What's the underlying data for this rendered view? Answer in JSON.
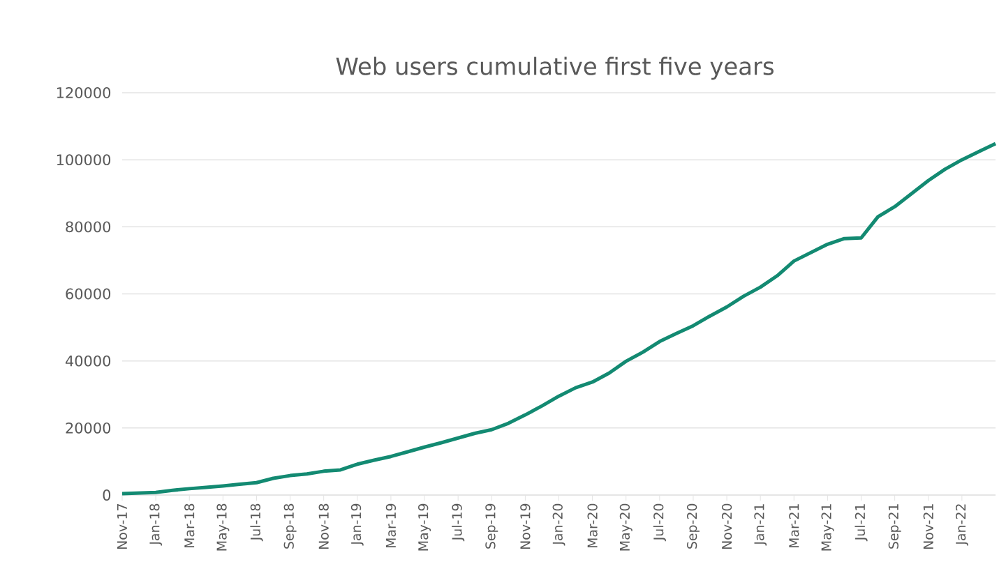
{
  "chart_data": {
    "type": "line",
    "title": "Web users cumulative first five years",
    "categories": [
      "Nov-17",
      null,
      "Jan-18",
      null,
      "Mar-18",
      null,
      "May-18",
      null,
      "Jul-18",
      null,
      "Sep-18",
      null,
      "Nov-18",
      null,
      "Jan-19",
      null,
      "Mar-19",
      null,
      "May-19",
      null,
      "Jul-19",
      null,
      "Sep-19",
      null,
      "Nov-19",
      null,
      "Jan-20",
      null,
      "Mar-20",
      null,
      "May-20",
      null,
      "Jul-20",
      null,
      "Sep-20",
      null,
      "Nov-20",
      null,
      "Jan-21",
      null,
      "Mar-21",
      null,
      "May-21",
      null,
      "Jul-21",
      null,
      "Sep-21",
      null,
      "Nov-21",
      null,
      "Jan-22",
      null,
      null
    ],
    "values": [
      400,
      600,
      800,
      1400,
      1900,
      2300,
      2700,
      3200,
      3700,
      5000,
      5800,
      6300,
      7100,
      7500,
      9200,
      10400,
      11500,
      12900,
      14300,
      15600,
      17000,
      18400,
      19500,
      21400,
      23900,
      26600,
      29500,
      32000,
      33700,
      36400,
      39900,
      42600,
      45800,
      48200,
      50500,
      53400,
      56100,
      59300,
      62000,
      65400,
      69800,
      72300,
      74800,
      76500,
      76700,
      83000,
      86000,
      89900,
      93800,
      97200,
      100000,
      102400,
      104800
    ],
    "color": "#138a72",
    "ylim": [
      0,
      120000
    ],
    "yticks": [
      0,
      20000,
      40000,
      60000,
      80000,
      100000,
      120000
    ],
    "grid": "y"
  }
}
